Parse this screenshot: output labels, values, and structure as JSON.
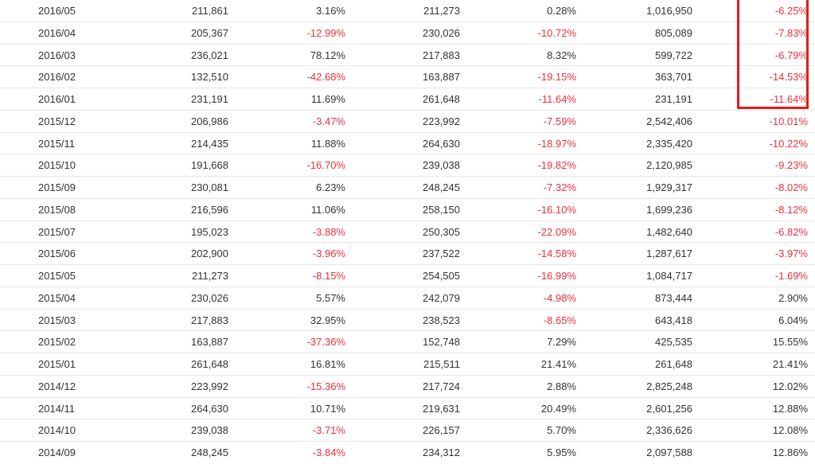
{
  "table": {
    "rows": [
      {
        "month": "2016/05",
        "c1": "211,861",
        "c2": "3.16%",
        "c3": "211,273",
        "c4": "0.28%",
        "c5": "1,016,950",
        "c6": "-6.25%"
      },
      {
        "month": "2016/04",
        "c1": "205,367",
        "c2": "-12.99%",
        "c3": "230,026",
        "c4": "-10.72%",
        "c5": "805,089",
        "c6": "-7.83%"
      },
      {
        "month": "2016/03",
        "c1": "236,021",
        "c2": "78.12%",
        "c3": "217,883",
        "c4": "8.32%",
        "c5": "599,722",
        "c6": "-6.79%"
      },
      {
        "month": "2016/02",
        "c1": "132,510",
        "c2": "-42.68%",
        "c3": "163,887",
        "c4": "-19.15%",
        "c5": "363,701",
        "c6": "-14.53%"
      },
      {
        "month": "2016/01",
        "c1": "231,191",
        "c2": "11.69%",
        "c3": "261,648",
        "c4": "-11.64%",
        "c5": "231,191",
        "c6": "-11.64%"
      },
      {
        "month": "2015/12",
        "c1": "206,986",
        "c2": "-3.47%",
        "c3": "223,992",
        "c4": "-7.59%",
        "c5": "2,542,406",
        "c6": "-10.01%"
      },
      {
        "month": "2015/11",
        "c1": "214,435",
        "c2": "11.88%",
        "c3": "264,630",
        "c4": "-18.97%",
        "c5": "2,335,420",
        "c6": "-10.22%"
      },
      {
        "month": "2015/10",
        "c1": "191,668",
        "c2": "-16.70%",
        "c3": "239,038",
        "c4": "-19.82%",
        "c5": "2,120,985",
        "c6": "-9.23%"
      },
      {
        "month": "2015/09",
        "c1": "230,081",
        "c2": "6.23%",
        "c3": "248,245",
        "c4": "-7.32%",
        "c5": "1,929,317",
        "c6": "-8.02%"
      },
      {
        "month": "2015/08",
        "c1": "216,596",
        "c2": "11.06%",
        "c3": "258,150",
        "c4": "-16.10%",
        "c5": "1,699,236",
        "c6": "-8.12%"
      },
      {
        "month": "2015/07",
        "c1": "195,023",
        "c2": "-3.88%",
        "c3": "250,305",
        "c4": "-22.09%",
        "c5": "1,482,640",
        "c6": "-6.82%"
      },
      {
        "month": "2015/06",
        "c1": "202,900",
        "c2": "-3.96%",
        "c3": "237,522",
        "c4": "-14.58%",
        "c5": "1,287,617",
        "c6": "-3.97%"
      },
      {
        "month": "2015/05",
        "c1": "211,273",
        "c2": "-8.15%",
        "c3": "254,505",
        "c4": "-16.99%",
        "c5": "1,084,717",
        "c6": "-1.69%"
      },
      {
        "month": "2015/04",
        "c1": "230,026",
        "c2": "5.57%",
        "c3": "242,079",
        "c4": "-4.98%",
        "c5": "873,444",
        "c6": "2.90%"
      },
      {
        "month": "2015/03",
        "c1": "217,883",
        "c2": "32.95%",
        "c3": "238,523",
        "c4": "-8.65%",
        "c5": "643,418",
        "c6": "6.04%"
      },
      {
        "month": "2015/02",
        "c1": "163,887",
        "c2": "-37.36%",
        "c3": "152,748",
        "c4": "7.29%",
        "c5": "425,535",
        "c6": "15.55%"
      },
      {
        "month": "2015/01",
        "c1": "261,648",
        "c2": "16.81%",
        "c3": "215,511",
        "c4": "21.41%",
        "c5": "261,648",
        "c6": "21.41%"
      },
      {
        "month": "2014/12",
        "c1": "223,992",
        "c2": "-15.36%",
        "c3": "217,724",
        "c4": "2.88%",
        "c5": "2,825,248",
        "c6": "12.02%"
      },
      {
        "month": "2014/11",
        "c1": "264,630",
        "c2": "10.71%",
        "c3": "219,631",
        "c4": "20.49%",
        "c5": "2,601,256",
        "c6": "12.88%"
      },
      {
        "month": "2014/10",
        "c1": "239,038",
        "c2": "-3.71%",
        "c3": "226,157",
        "c4": "5.70%",
        "c5": "2,336,626",
        "c6": "12.08%"
      },
      {
        "month": "2014/09",
        "c1": "248,245",
        "c2": "-3.84%",
        "c3": "234,312",
        "c4": "5.95%",
        "c5": "2,097,588",
        "c6": "12.86%"
      }
    ]
  },
  "colors": {
    "negative": "#e8323c",
    "positive": "#333333",
    "highlight_border": "#e21d1d",
    "row_divider": "#e6e6e6"
  }
}
